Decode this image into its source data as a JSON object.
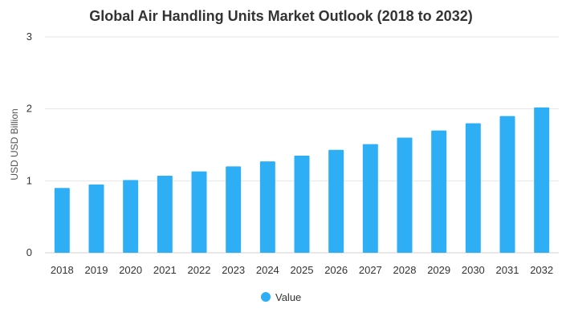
{
  "chart_data": {
    "type": "bar",
    "title": "Global Air Handling Units Market Outlook (2018 to 2032)",
    "xlabel": "",
    "ylabel": "USD USD Billion",
    "ylim": [
      0,
      3
    ],
    "yticks": [
      0,
      1,
      2,
      3
    ],
    "grid": true,
    "legend_position": "bottom-center",
    "categories": [
      "2018",
      "2019",
      "2020",
      "2021",
      "2022",
      "2023",
      "2024",
      "2025",
      "2026",
      "2027",
      "2028",
      "2029",
      "2030",
      "2031",
      "2032"
    ],
    "series": [
      {
        "name": "Value",
        "color": "#2EAEF5",
        "values": [
          0.9,
          0.95,
          1.01,
          1.07,
          1.13,
          1.2,
          1.27,
          1.35,
          1.43,
          1.51,
          1.6,
          1.7,
          1.8,
          1.9,
          2.02
        ]
      }
    ]
  }
}
